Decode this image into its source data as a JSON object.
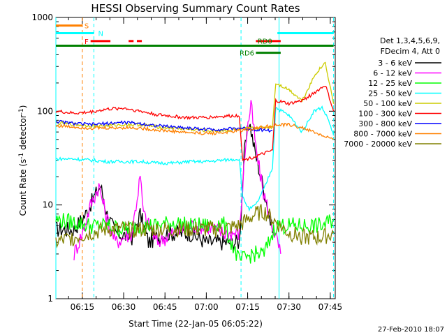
{
  "chart_data": {
    "type": "line",
    "title": "HESSI Observing Summary Count Rates",
    "xlabel": "Start Time (22-Jan-05 06:05:22)",
    "ylabel": "Count Rate (s-1 detector-1)",
    "ylabel_parts": {
      "pre": "Count Rate (s",
      "sup1": "-1",
      "mid": " detector",
      "sup2": "-1",
      "post": ")"
    },
    "yscale": "log",
    "ylim": [
      1,
      1000
    ],
    "xlim": [
      6.09,
      7.78
    ],
    "x_ticks": [
      {
        "value": 6.25,
        "label": "06:15"
      },
      {
        "value": 6.5,
        "label": "06:30"
      },
      {
        "value": 6.75,
        "label": "06:45"
      },
      {
        "value": 7.0,
        "label": "07:00"
      },
      {
        "value": 7.25,
        "label": "07:15"
      },
      {
        "value": 7.5,
        "label": "07:30"
      },
      {
        "value": 7.75,
        "label": "07:45"
      }
    ],
    "y_ticks": [
      {
        "value": 1,
        "label": "1"
      },
      {
        "value": 10,
        "label": "10"
      },
      {
        "value": 100,
        "label": "100"
      },
      {
        "value": 1000,
        "label": "1000"
      }
    ],
    "legend": {
      "header": [
        "Det 1,3,4,5,6,9,",
        "FDecim 4, Att 0"
      ],
      "placement": "right"
    },
    "series": [
      {
        "name": "3 - 6 keV",
        "color": "#000000",
        "points": [
          [
            6.09,
            5.5
          ],
          [
            6.2,
            5.5
          ],
          [
            6.27,
            8
          ],
          [
            6.32,
            12
          ],
          [
            6.36,
            16
          ],
          [
            6.4,
            8
          ],
          [
            6.45,
            5
          ],
          [
            6.55,
            4.5
          ],
          [
            6.6,
            8
          ],
          [
            6.65,
            4
          ],
          [
            6.75,
            5
          ],
          [
            6.9,
            5
          ],
          [
            7.0,
            4
          ],
          [
            7.1,
            4
          ],
          [
            7.2,
            4
          ],
          [
            7.23,
            35
          ],
          [
            7.26,
            80
          ],
          [
            7.29,
            40
          ],
          [
            7.33,
            20
          ],
          [
            7.37,
            10
          ],
          [
            7.4,
            5
          ]
        ]
      },
      {
        "name": "6 - 12 keV",
        "color": "#ff00ff",
        "points": [
          [
            6.2,
            3
          ],
          [
            6.25,
            5
          ],
          [
            6.3,
            10
          ],
          [
            6.35,
            16
          ],
          [
            6.4,
            7
          ],
          [
            6.45,
            4
          ],
          [
            6.55,
            5
          ],
          [
            6.6,
            20
          ],
          [
            6.62,
            8
          ],
          [
            6.7,
            4
          ],
          [
            6.8,
            5
          ],
          [
            6.9,
            6
          ],
          [
            7.0,
            6
          ],
          [
            7.1,
            5
          ],
          [
            7.2,
            5
          ],
          [
            7.24,
            50
          ],
          [
            7.27,
            120
          ],
          [
            7.3,
            40
          ],
          [
            7.34,
            15
          ],
          [
            7.38,
            8
          ],
          [
            7.45,
            3
          ]
        ]
      },
      {
        "name": "12 - 25 keV",
        "color": "#00ff00",
        "points": [
          [
            6.09,
            7
          ],
          [
            6.2,
            6.5
          ],
          [
            6.3,
            6
          ],
          [
            6.4,
            6
          ],
          [
            6.5,
            5.5
          ],
          [
            6.6,
            6
          ],
          [
            6.7,
            6
          ],
          [
            6.8,
            6.5
          ],
          [
            6.9,
            6
          ],
          [
            7.0,
            6
          ],
          [
            7.1,
            6.5
          ],
          [
            7.2,
            2.5
          ],
          [
            7.28,
            3
          ],
          [
            7.35,
            3
          ],
          [
            7.42,
            6
          ],
          [
            7.5,
            6
          ],
          [
            7.6,
            6
          ],
          [
            7.7,
            6
          ],
          [
            7.77,
            7
          ]
        ]
      },
      {
        "name": "25 - 50 keV",
        "color": "#00ffff",
        "points": [
          [
            6.09,
            31
          ],
          [
            6.2,
            31
          ],
          [
            6.3,
            30
          ],
          [
            6.4,
            29
          ],
          [
            6.5,
            29
          ],
          [
            6.6,
            29
          ],
          [
            6.7,
            28
          ],
          [
            6.8,
            28
          ],
          [
            6.9,
            29
          ],
          [
            7.0,
            29
          ],
          [
            7.1,
            30
          ],
          [
            7.2,
            31
          ],
          [
            7.22,
            12
          ],
          [
            7.26,
            9
          ],
          [
            7.3,
            10
          ],
          [
            7.35,
            15
          ],
          [
            7.4,
            25
          ],
          [
            7.42,
            110
          ],
          [
            7.5,
            90
          ],
          [
            7.58,
            60
          ],
          [
            7.65,
            100
          ],
          [
            7.7,
            110
          ],
          [
            7.74,
            80
          ],
          [
            7.77,
            55
          ]
        ]
      },
      {
        "name": "50 - 100 keV",
        "color": "#cccc00",
        "points": [
          [
            6.09,
            75
          ],
          [
            6.2,
            72
          ],
          [
            6.3,
            70
          ],
          [
            6.4,
            70
          ],
          [
            6.5,
            72
          ],
          [
            6.6,
            72
          ],
          [
            6.7,
            68
          ],
          [
            6.8,
            66
          ],
          [
            6.9,
            64
          ],
          [
            7.0,
            62
          ],
          [
            7.1,
            62
          ],
          [
            7.2,
            64
          ],
          [
            7.3,
            66
          ],
          [
            7.4,
            68
          ],
          [
            7.42,
            200
          ],
          [
            7.5,
            170
          ],
          [
            7.58,
            130
          ],
          [
            7.66,
            250
          ],
          [
            7.72,
            330
          ],
          [
            7.77,
            120
          ]
        ]
      },
      {
        "name": "100 - 300 keV",
        "color": "#ff0000",
        "points": [
          [
            6.09,
            100
          ],
          [
            6.2,
            95
          ],
          [
            6.3,
            98
          ],
          [
            6.4,
            105
          ],
          [
            6.5,
            108
          ],
          [
            6.6,
            100
          ],
          [
            6.7,
            92
          ],
          [
            6.8,
            88
          ],
          [
            6.9,
            85
          ],
          [
            7.0,
            86
          ],
          [
            7.1,
            88
          ],
          [
            7.2,
            90
          ],
          [
            7.22,
            30
          ],
          [
            7.3,
            33
          ],
          [
            7.4,
            38
          ],
          [
            7.42,
            130
          ],
          [
            7.5,
            120
          ],
          [
            7.58,
            130
          ],
          [
            7.66,
            160
          ],
          [
            7.72,
            190
          ],
          [
            7.77,
            100
          ]
        ]
      },
      {
        "name": "300 - 800 keV",
        "color": "#0000ff",
        "points": [
          [
            6.09,
            78
          ],
          [
            6.2,
            74
          ],
          [
            6.3,
            72
          ],
          [
            6.4,
            74
          ],
          [
            6.5,
            76
          ],
          [
            6.6,
            74
          ],
          [
            6.7,
            70
          ],
          [
            6.8,
            68
          ],
          [
            6.9,
            66
          ],
          [
            7.0,
            64
          ],
          [
            7.1,
            64
          ],
          [
            7.2,
            66
          ],
          [
            7.3,
            64
          ],
          [
            7.4,
            62
          ]
        ]
      },
      {
        "name": "800 - 7000 keV",
        "color": "#ff8000",
        "points": [
          [
            6.09,
            70
          ],
          [
            6.2,
            68
          ],
          [
            6.3,
            66
          ],
          [
            6.4,
            66
          ],
          [
            6.5,
            67
          ],
          [
            6.6,
            66
          ],
          [
            6.7,
            63
          ],
          [
            6.8,
            61
          ],
          [
            6.9,
            59
          ],
          [
            7.0,
            58
          ],
          [
            7.1,
            59
          ],
          [
            7.2,
            62
          ],
          [
            7.3,
            66
          ],
          [
            7.4,
            70
          ],
          [
            7.5,
            72
          ],
          [
            7.6,
            65
          ],
          [
            7.7,
            55
          ],
          [
            7.77,
            50
          ]
        ]
      },
      {
        "name": "7000 - 20000 keV",
        "color": "#808000",
        "points": [
          [
            6.09,
            4
          ],
          [
            6.2,
            4.5
          ],
          [
            6.3,
            5
          ],
          [
            6.4,
            5.5
          ],
          [
            6.5,
            5.5
          ],
          [
            6.6,
            5.5
          ],
          [
            6.7,
            5.5
          ],
          [
            6.8,
            5.5
          ],
          [
            6.9,
            5.5
          ],
          [
            7.0,
            5.5
          ],
          [
            7.1,
            5.5
          ],
          [
            7.2,
            6
          ],
          [
            7.25,
            7
          ],
          [
            7.3,
            8
          ],
          [
            7.35,
            8.5
          ],
          [
            7.4,
            7
          ],
          [
            7.5,
            5
          ],
          [
            7.6,
            4.5
          ],
          [
            7.7,
            4.5
          ],
          [
            7.77,
            5
          ]
        ]
      }
    ],
    "flags": [
      {
        "name": "S",
        "color": "#ff8000",
        "label_value": 820,
        "segments": [
          [
            6.09,
            6.25
          ]
        ]
      },
      {
        "name": "N",
        "color": "#00ffff",
        "label_value": 680,
        "segments": [
          [
            6.09,
            6.32
          ],
          [
            7.43,
            7.77
          ]
        ]
      },
      {
        "name": "F",
        "color": "#ff0000",
        "label_value": 560,
        "segments": [
          [
            6.3,
            6.42
          ],
          [
            6.53,
            6.56
          ],
          [
            6.58,
            6.61
          ],
          [
            7.3,
            7.45
          ]
        ]
      },
      {
        "name": "RD0",
        "color": "#008000",
        "label_value": 500,
        "segments": [
          [
            6.09,
            7.77
          ]
        ]
      },
      {
        "name": "RD6",
        "color": "#008000",
        "label_value": 420,
        "segments": [
          [
            7.3,
            7.45
          ]
        ]
      }
    ],
    "vlines": [
      {
        "x": 6.09,
        "color": "#00ffff",
        "style": "solid"
      },
      {
        "x": 6.25,
        "color": "#ff8000",
        "style": "dashed"
      },
      {
        "x": 6.32,
        "color": "#00ffff",
        "style": "dashed"
      },
      {
        "x": 7.21,
        "color": "#00ffff",
        "style": "dashed"
      },
      {
        "x": 7.44,
        "color": "#00ffff",
        "style": "solid"
      },
      {
        "x": 7.77,
        "color": "#00ffff",
        "style": "dashed"
      }
    ],
    "footer_date": "27-Feb-2010 18:07"
  }
}
